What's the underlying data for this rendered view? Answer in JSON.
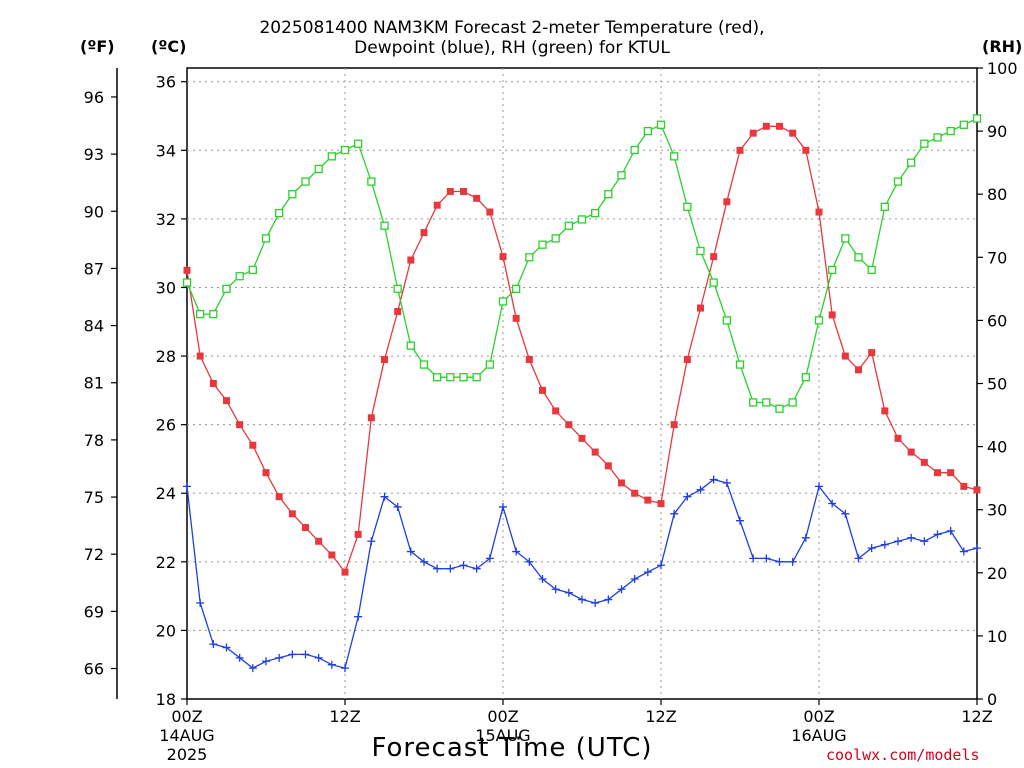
{
  "title_line1": "2025081400 NAM3KM Forecast 2-meter Temperature (red),",
  "title_line2": "Dewpoint (blue), RH (green) for KTUL",
  "unit_f": "(ºF)",
  "unit_c": "(ºC)",
  "unit_rh": "(RH)",
  "xlabel": "Forecast Time (UTC)",
  "credit": "coolwx.com/models",
  "colors": {
    "temperature": "#e8383d",
    "dewpoint": "#1f3fe0",
    "rh": "#2bd12b",
    "grid": "#9a9a9a"
  },
  "chart_data": {
    "type": "line",
    "x_unit": "forecast hour from 2025-08-14 00Z (UTC)",
    "x": [
      0,
      1,
      2,
      3,
      4,
      5,
      6,
      7,
      8,
      9,
      10,
      11,
      12,
      13,
      14,
      15,
      16,
      17,
      18,
      19,
      20,
      21,
      22,
      23,
      24,
      25,
      26,
      27,
      28,
      29,
      30,
      31,
      32,
      33,
      34,
      35,
      36,
      37,
      38,
      39,
      40,
      41,
      42,
      43,
      44,
      45,
      46,
      47,
      48,
      49,
      50,
      51,
      52,
      53,
      54,
      55,
      56,
      57,
      58,
      59,
      60
    ],
    "x_ticks": [
      {
        "hour": 0,
        "lines": [
          "00Z",
          "14AUG",
          "2025"
        ]
      },
      {
        "hour": 12,
        "lines": [
          "12Z"
        ]
      },
      {
        "hour": 24,
        "lines": [
          "00Z",
          "15AUG"
        ]
      },
      {
        "hour": 36,
        "lines": [
          "12Z"
        ]
      },
      {
        "hour": 48,
        "lines": [
          "00Z",
          "16AUG"
        ]
      },
      {
        "hour": 60,
        "lines": [
          "12Z"
        ]
      }
    ],
    "xlim": [
      0,
      60
    ],
    "left_axis": {
      "unit": "°C",
      "ylim": [
        18,
        36.4
      ],
      "ticks": [
        18,
        20,
        22,
        24,
        26,
        28,
        30,
        32,
        34,
        36
      ]
    },
    "outer_left_axis": {
      "unit": "°F",
      "ticks": [
        66,
        69,
        72,
        75,
        78,
        81,
        84,
        87,
        90,
        93,
        96
      ]
    },
    "right_axis": {
      "unit": "RH",
      "ylim": [
        0,
        100
      ],
      "ticks": [
        0,
        10,
        20,
        30,
        40,
        50,
        60,
        70,
        80,
        90,
        100
      ]
    },
    "grid": true,
    "series": [
      {
        "name": "Temperature",
        "axis": "left",
        "color": "#e8383d",
        "marker": "filled-square",
        "values": [
          30.5,
          28.0,
          27.2,
          26.7,
          26.0,
          25.4,
          24.6,
          23.9,
          23.4,
          23.0,
          22.6,
          22.2,
          21.7,
          22.8,
          26.2,
          27.9,
          29.3,
          30.8,
          31.6,
          32.4,
          32.8,
          32.8,
          32.6,
          32.2,
          30.9,
          29.1,
          27.9,
          27.0,
          26.4,
          26.0,
          25.6,
          25.2,
          24.8,
          24.3,
          24.0,
          23.8,
          23.7,
          26.0,
          27.9,
          29.4,
          30.9,
          32.5,
          34.0,
          34.5,
          34.7,
          34.7,
          34.5,
          34.0,
          32.2,
          29.2,
          28.0,
          27.6,
          28.1,
          26.4,
          25.6,
          25.2,
          24.9,
          24.6,
          24.6,
          24.2,
          24.1
        ]
      },
      {
        "name": "Dewpoint",
        "axis": "left",
        "color": "#1f3fe0",
        "marker": "plus",
        "values": [
          24.2,
          20.8,
          19.6,
          19.5,
          19.2,
          18.9,
          19.1,
          19.2,
          19.3,
          19.3,
          19.2,
          19.0,
          18.9,
          20.4,
          22.6,
          23.9,
          23.6,
          22.3,
          22.0,
          21.8,
          21.8,
          21.9,
          21.8,
          22.1,
          23.6,
          22.3,
          22.0,
          21.5,
          21.2,
          21.1,
          20.9,
          20.8,
          20.9,
          21.2,
          21.5,
          21.7,
          21.9,
          23.4,
          23.9,
          24.1,
          24.4,
          24.3,
          23.2,
          22.1,
          22.1,
          22.0,
          22.0,
          22.7,
          24.2,
          23.7,
          23.4,
          22.1,
          22.4,
          22.5,
          22.6,
          22.7,
          22.6,
          22.8,
          22.9,
          22.3,
          22.4
        ]
      },
      {
        "name": "RH",
        "axis": "right",
        "color": "#2bd12b",
        "marker": "open-square",
        "values": [
          66,
          61,
          61,
          65,
          67,
          68,
          73,
          77,
          80,
          82,
          84,
          86,
          87,
          88,
          82,
          75,
          65,
          56,
          53,
          51,
          51,
          51,
          51,
          53,
          63,
          65,
          70,
          72,
          73,
          75,
          76,
          77,
          80,
          83,
          87,
          90,
          91,
          86,
          78,
          71,
          66,
          60,
          53,
          47,
          47,
          46,
          47,
          51,
          60,
          68,
          73,
          70,
          68,
          78,
          82,
          85,
          88,
          89,
          90,
          91,
          92
        ]
      }
    ]
  }
}
